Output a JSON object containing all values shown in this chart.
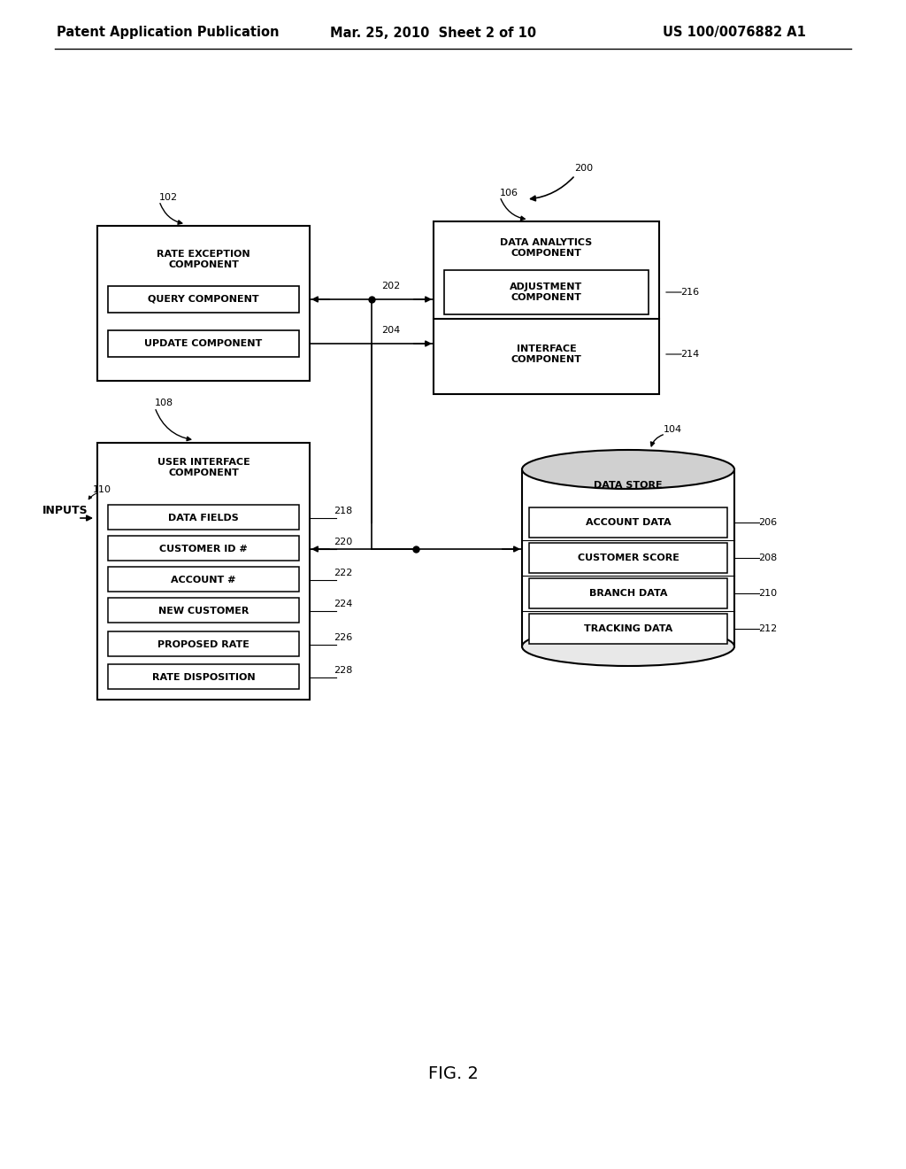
{
  "bg_color": "#ffffff",
  "header_left": "Patent Application Publication",
  "header_mid": "Mar. 25, 2010  Sheet 2 of 10",
  "header_right": "US 100/0076882 A1",
  "footer": "FIG. 2",
  "label_200": "200",
  "label_102": "102",
  "label_106": "106",
  "label_104": "104",
  "label_108": "108",
  "label_110": "110",
  "label_202": "202",
  "label_204": "204",
  "label_206": "206",
  "label_208": "208",
  "label_210": "210",
  "label_212": "212",
  "label_214": "214",
  "label_216": "216",
  "label_218": "218",
  "label_220": "220",
  "label_222": "222",
  "label_224": "224",
  "label_226": "226",
  "label_228": "228",
  "text_color": "#000000",
  "font_size_header": 10.5,
  "font_size_label": 9,
  "font_size_box": 8,
  "font_size_number": 8
}
